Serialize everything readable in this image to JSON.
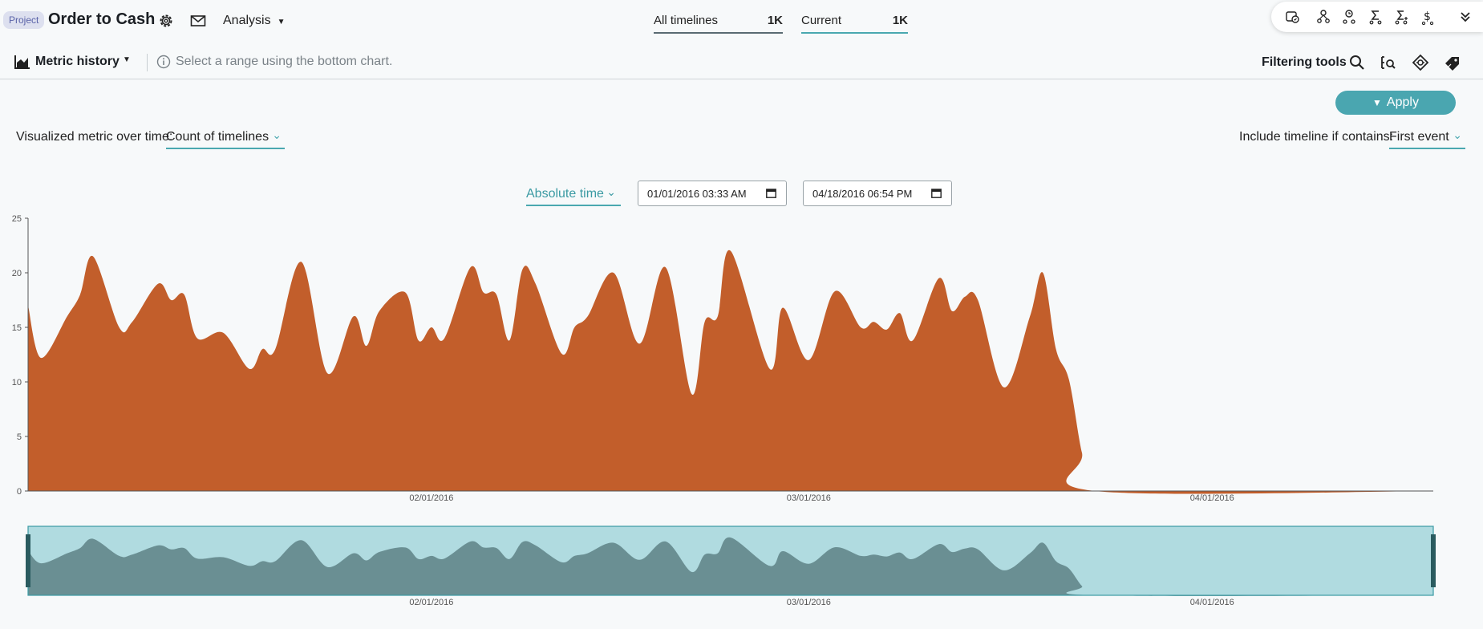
{
  "header": {
    "project_badge": "Project",
    "title": "Order to Cash",
    "analysis_label": "Analysis",
    "timelines": {
      "all_label": "All timelines",
      "all_count": "1K",
      "current_label": "Current",
      "current_count": "1K"
    },
    "icon_panel": [
      "map-toggle-icon",
      "process-map-icon",
      "clock-map-icon",
      "sigma-map-icon",
      "sum-map-icon",
      "cost-map-icon",
      "collapse-chevron-icon"
    ]
  },
  "toolbar": {
    "view_label": "Metric history",
    "hint": "Select a range using the bottom chart.",
    "filtering_label": "Filtering tools",
    "filtering_icons": [
      "search-icon",
      "attribute-filter-icon",
      "variant-filter-icon",
      "tag-filter-icon"
    ]
  },
  "controls": {
    "apply_label": "Apply",
    "metric_label": "Visualized metric over time:",
    "metric_value": "Count of timelines",
    "include_label": "Include timeline if contains:",
    "include_value": "First event",
    "time_mode": "Absolute time",
    "start_datetime": "01/01/2016 03:33 AM",
    "end_datetime": "04/18/2016 06:54 PM"
  },
  "colors": {
    "accent": "#4aa6b0",
    "main_area": "#c25e2b",
    "brush_bg": "#b0dbe0",
    "brush_area": "#6a8f93",
    "brush_handle": "#2a5b5f"
  },
  "chart_data": {
    "type": "area",
    "x_domain": [
      "2016-01-01",
      "2016-04-18"
    ],
    "ylim": [
      0,
      25
    ],
    "yticks": [
      0,
      5,
      10,
      15,
      20,
      25
    ],
    "xticks": [
      {
        "date": "2016-02-01",
        "label": "02/01/2016"
      },
      {
        "date": "2016-03-01",
        "label": "03/01/2016"
      },
      {
        "date": "2016-04-01",
        "label": "04/01/2016"
      }
    ],
    "series": [
      {
        "points": [
          {
            "x": "2016-01-01",
            "y": 17
          },
          {
            "x": "2016-01-02",
            "y": 12.2
          },
          {
            "x": "2016-01-04",
            "y": 16
          },
          {
            "x": "2016-01-05",
            "y": 18
          },
          {
            "x": "2016-01-06",
            "y": 21.5
          },
          {
            "x": "2016-01-08",
            "y": 15
          },
          {
            "x": "2016-01-09",
            "y": 15.5
          },
          {
            "x": "2016-01-11",
            "y": 19
          },
          {
            "x": "2016-01-12",
            "y": 17.5
          },
          {
            "x": "2016-01-13",
            "y": 18
          },
          {
            "x": "2016-01-14",
            "y": 14
          },
          {
            "x": "2016-01-16",
            "y": 14.5
          },
          {
            "x": "2016-01-18",
            "y": 11.2
          },
          {
            "x": "2016-01-19",
            "y": 13
          },
          {
            "x": "2016-01-20",
            "y": 13
          },
          {
            "x": "2016-01-22",
            "y": 21
          },
          {
            "x": "2016-01-24",
            "y": 10.8
          },
          {
            "x": "2016-01-26",
            "y": 16
          },
          {
            "x": "2016-01-27",
            "y": 13.3
          },
          {
            "x": "2016-01-28",
            "y": 16.5
          },
          {
            "x": "2016-01-30",
            "y": 18.2
          },
          {
            "x": "2016-01-31",
            "y": 13.8
          },
          {
            "x": "2016-02-01",
            "y": 15
          },
          {
            "x": "2016-02-02",
            "y": 14
          },
          {
            "x": "2016-02-04",
            "y": 20.5
          },
          {
            "x": "2016-02-05",
            "y": 18.2
          },
          {
            "x": "2016-02-06",
            "y": 18
          },
          {
            "x": "2016-02-07",
            "y": 13.8
          },
          {
            "x": "2016-02-08",
            "y": 20.3
          },
          {
            "x": "2016-02-09",
            "y": 19
          },
          {
            "x": "2016-02-11",
            "y": 12.6
          },
          {
            "x": "2016-02-12",
            "y": 15
          },
          {
            "x": "2016-02-13",
            "y": 16
          },
          {
            "x": "2016-02-15",
            "y": 20
          },
          {
            "x": "2016-02-17",
            "y": 13.5
          },
          {
            "x": "2016-02-19",
            "y": 20.5
          },
          {
            "x": "2016-02-21",
            "y": 8.9
          },
          {
            "x": "2016-02-22",
            "y": 15.5
          },
          {
            "x": "2016-02-23",
            "y": 16
          },
          {
            "x": "2016-02-24",
            "y": 22
          },
          {
            "x": "2016-02-27",
            "y": 11.2
          },
          {
            "x": "2016-02-28",
            "y": 16.8
          },
          {
            "x": "2016-03-01",
            "y": 12
          },
          {
            "x": "2016-03-03",
            "y": 18.3
          },
          {
            "x": "2016-03-05",
            "y": 15
          },
          {
            "x": "2016-03-06",
            "y": 15.5
          },
          {
            "x": "2016-03-07",
            "y": 14.8
          },
          {
            "x": "2016-03-08",
            "y": 16.3
          },
          {
            "x": "2016-03-09",
            "y": 13.8
          },
          {
            "x": "2016-03-11",
            "y": 19.5
          },
          {
            "x": "2016-03-12",
            "y": 16.5
          },
          {
            "x": "2016-03-13",
            "y": 17.8
          },
          {
            "x": "2016-03-14",
            "y": 17.5
          },
          {
            "x": "2016-03-16",
            "y": 9.5
          },
          {
            "x": "2016-03-18",
            "y": 16
          },
          {
            "x": "2016-03-19",
            "y": 20
          },
          {
            "x": "2016-03-20",
            "y": 13
          },
          {
            "x": "2016-03-21",
            "y": 10.2
          },
          {
            "x": "2016-03-22",
            "y": 3.5
          },
          {
            "x": "2016-03-23",
            "y": 0
          },
          {
            "x": "2016-04-18",
            "y": 0
          }
        ]
      }
    ],
    "brush": {
      "selection": [
        "2016-01-01",
        "2016-04-18"
      ]
    }
  }
}
